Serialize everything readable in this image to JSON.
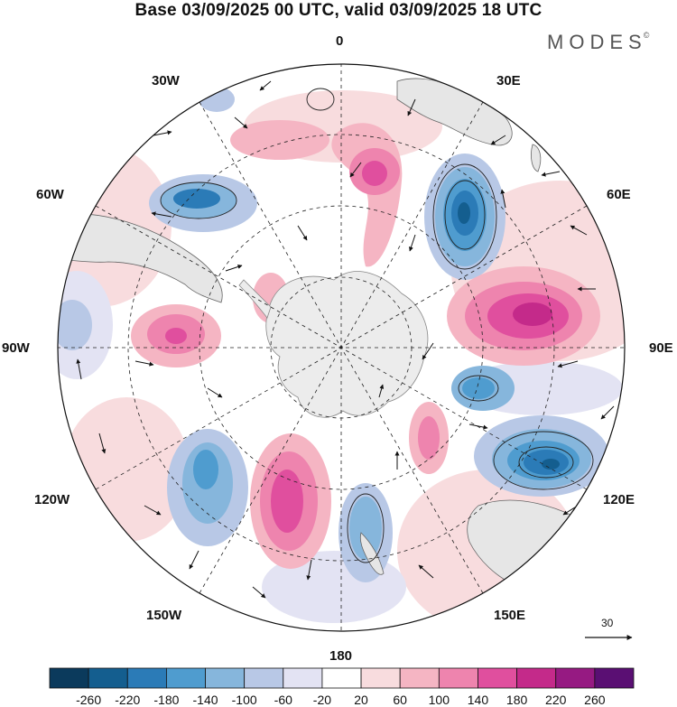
{
  "title": "Base 03/09/2025 00 UTC, valid 03/09/2025 18 UTC",
  "brand": {
    "name": "MODES",
    "mark": "©"
  },
  "longitude_labels": {
    "top": "0",
    "top_right": "30E",
    "upper_right": "60E",
    "right": "90E",
    "lower_right": "120E",
    "bottom_right": "150E",
    "bottom": "180",
    "bottom_left": "150W",
    "lower_left": "120W",
    "left": "90W",
    "upper_left": "60W",
    "top_left": "30W"
  },
  "reference_vector": {
    "label": "30"
  },
  "colorbar": {
    "ticks": [
      "-260",
      "-220",
      "-180",
      "-140",
      "-100",
      "-60",
      "-20",
      "20",
      "60",
      "100",
      "140",
      "180",
      "220",
      "260"
    ],
    "colors": [
      "#0b3a5c",
      "#145e8f",
      "#2b7bb7",
      "#4f9ccf",
      "#86b6dc",
      "#b8c8e6",
      "#e3e3f3",
      "#ffffff",
      "#f8dcde",
      "#f5b5c3",
      "#ee84ae",
      "#e04f9e",
      "#c42a8a",
      "#961a82",
      "#5a0f73"
    ]
  },
  "colors": {
    "land": "#e6e6e6",
    "antarctica": "#ececec",
    "coast": "#444444"
  }
}
